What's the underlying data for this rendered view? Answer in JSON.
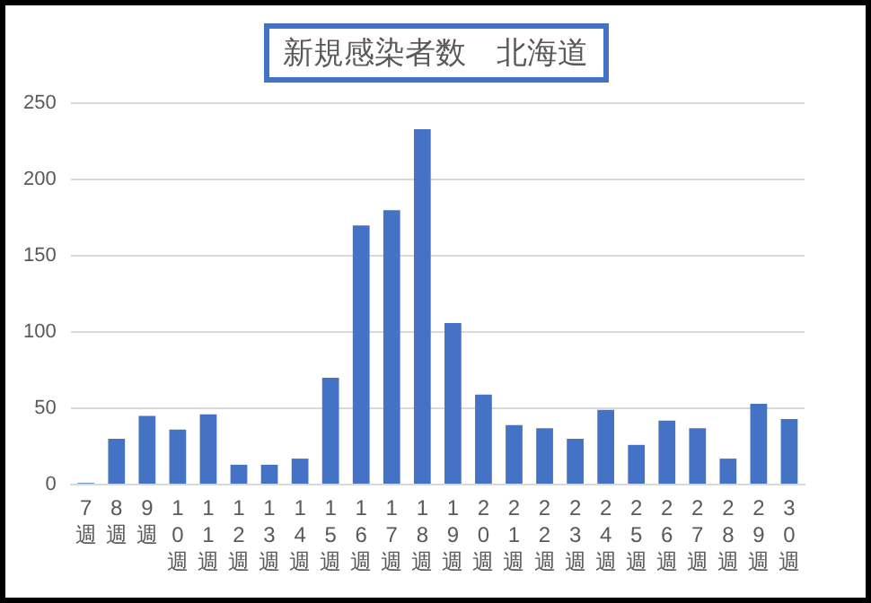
{
  "chart_data": {
    "type": "bar",
    "title": "新規感染者数　北海道",
    "categories": [
      "7週",
      "8週",
      "9週",
      "10週",
      "11週",
      "12週",
      "13週",
      "14週",
      "15週",
      "16週",
      "17週",
      "18週",
      "19週",
      "20週",
      "21週",
      "22週",
      "23週",
      "24週",
      "25週",
      "26週",
      "27週",
      "28週",
      "29週",
      "30週"
    ],
    "values": [
      1,
      30,
      45,
      36,
      46,
      13,
      13,
      17,
      70,
      170,
      180,
      233,
      106,
      59,
      39,
      37,
      30,
      49,
      26,
      42,
      37,
      17,
      53,
      43
    ],
    "color": "#4472c4",
    "ylim": [
      0,
      250
    ],
    "yticks": [
      0,
      50,
      100,
      150,
      200,
      250
    ],
    "grid": "y"
  }
}
